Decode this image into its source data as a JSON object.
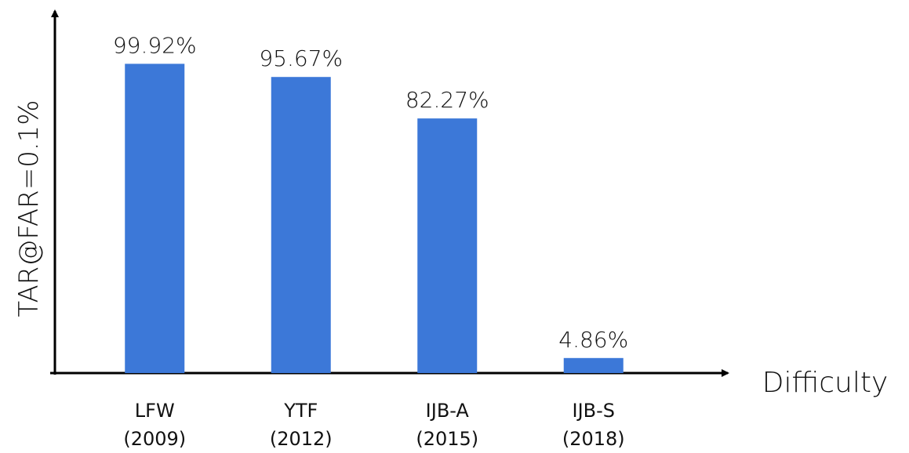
{
  "chart_data": {
    "type": "bar",
    "categories": [
      "LFW\n(2009)",
      "YTF\n(2012)",
      "IJB-A\n(2015)",
      "IJB-S\n(2018)"
    ],
    "values": [
      99.92,
      95.67,
      82.27,
      4.86
    ],
    "value_labels": [
      "99.92%",
      "95.67%",
      "82.27%",
      "4.86%"
    ],
    "color": "#3c78d8",
    "xlabel": "Difficulty",
    "ylabel": "TAR@FAR=0.1%",
    "ylim": [
      0,
      117.5
    ]
  }
}
